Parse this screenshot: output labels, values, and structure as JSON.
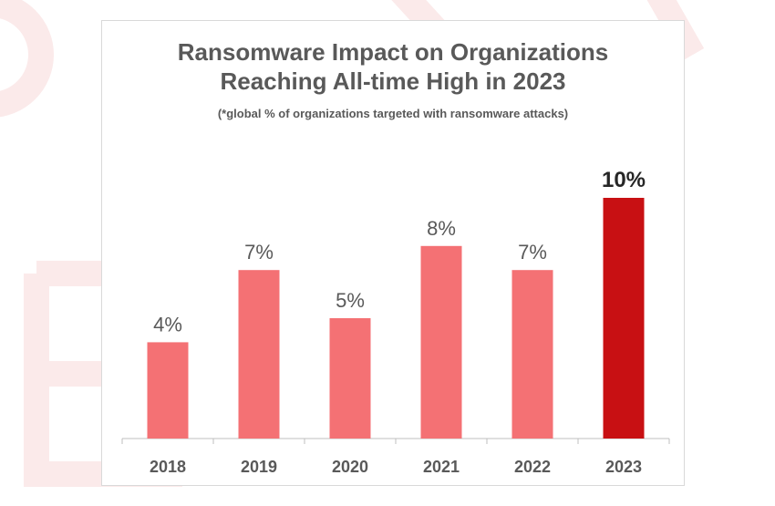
{
  "chart_data": {
    "type": "bar",
    "title_line1": "Ransomware Impact on Organizations",
    "title_line2": "Reaching All-time High in 2023",
    "subtitle": "(*global % of organizations targeted with ransomware attacks)",
    "categories": [
      "2018",
      "2019",
      "2020",
      "2021",
      "2022",
      "2023"
    ],
    "values": [
      4,
      7,
      5,
      8,
      7,
      10
    ],
    "value_labels": [
      "4%",
      "7%",
      "5%",
      "8%",
      "7%",
      "10%"
    ],
    "ylim": [
      0,
      10
    ],
    "grid": false,
    "colors": {
      "bar": "#f47174",
      "highlight_bar": "#c81013",
      "highlight_index": 5,
      "axis": "#bfbfbf",
      "text": "#595959",
      "highlight_label": "#262626"
    }
  }
}
